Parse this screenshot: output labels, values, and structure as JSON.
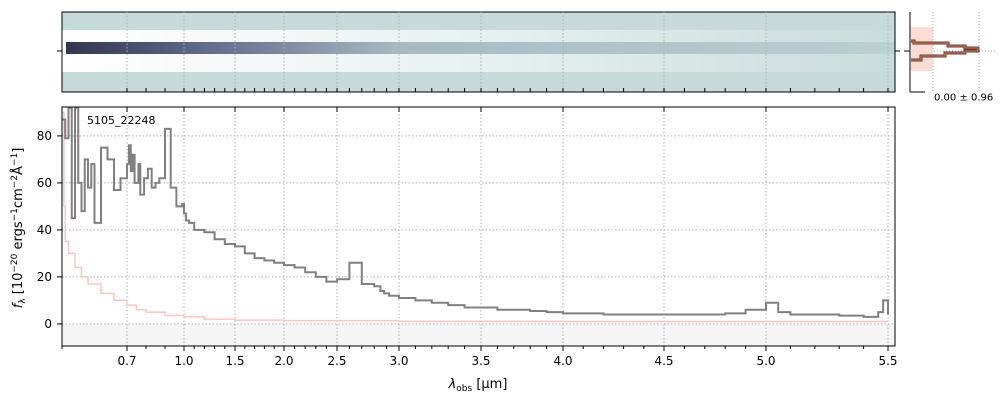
{
  "chart_data": {
    "type": "line",
    "title": "",
    "annotation": "5105_22248",
    "xlabel": "λ_obs [μm]",
    "xlabel_main": "λ",
    "xlabel_sub": "obs",
    "xlabel_unit": " [μm]",
    "ylabel": "f_λ [10^-20 ergs^-1 cm^-2 Å^-1]",
    "xlim": [
      0.6,
      5.52
    ],
    "ylim": [
      -9.4,
      92.3
    ],
    "xticks": [
      0.7,
      1.0,
      1.5,
      2.0,
      2.5,
      3.0,
      3.5,
      4.0,
      4.5,
      5.0,
      5.5
    ],
    "xtick_labels": [
      "0.7",
      "1.0",
      "1.5",
      "2.0",
      "2.5",
      "3.0",
      "3.5",
      "4.0",
      "4.5",
      "5.0",
      "5.5"
    ],
    "yticks": [
      0,
      20,
      40,
      60,
      80
    ],
    "ytick_labels": [
      "0",
      "20",
      "40",
      "60",
      "80"
    ],
    "grid": true,
    "series": [
      {
        "name": "flux",
        "color": "#808080",
        "x": [
          0.6,
          0.605,
          0.61,
          0.615,
          0.62,
          0.625,
          0.63,
          0.635,
          0.64,
          0.645,
          0.65,
          0.66,
          0.67,
          0.68,
          0.69,
          0.7,
          0.71,
          0.72,
          0.73,
          0.74,
          0.76,
          0.77,
          0.79,
          0.81,
          0.83,
          0.85,
          0.87,
          0.9,
          0.93,
          0.96,
          0.99,
          1.0,
          1.02,
          1.05,
          1.1,
          1.2,
          1.3,
          1.4,
          1.5,
          1.6,
          1.7,
          1.8,
          1.9,
          2.0,
          2.1,
          2.2,
          2.3,
          2.4,
          2.5,
          2.6,
          2.7,
          2.8,
          2.85,
          2.88,
          2.92,
          3.0,
          3.1,
          3.2,
          3.3,
          3.4,
          3.5,
          3.6,
          3.7,
          3.8,
          3.9,
          4.0,
          4.1,
          4.2,
          4.3,
          4.4,
          4.5,
          4.6,
          4.7,
          4.8,
          4.9,
          5.0,
          5.05,
          5.1,
          5.2,
          5.3,
          5.4,
          5.46,
          5.48,
          5.5
        ],
        "y": [
          87,
          79,
          92,
          45,
          92,
          60,
          48,
          70,
          58,
          68,
          43,
          75,
          70,
          57,
          62,
          68,
          76,
          65,
          72,
          60,
          68,
          55,
          62,
          66,
          58,
          60,
          62,
          83,
          58,
          50,
          51,
          47,
          44,
          43,
          40,
          39,
          36,
          34,
          33,
          30,
          28,
          27,
          26,
          25,
          24,
          22,
          20,
          18,
          19,
          26,
          17,
          16,
          14,
          13,
          12,
          11,
          10,
          9,
          8,
          7,
          7,
          6,
          6,
          5.5,
          5,
          4.5,
          4.5,
          4,
          4,
          4,
          4,
          4,
          4,
          4.5,
          6,
          9,
          5,
          4,
          4,
          3.5,
          3,
          5,
          10,
          4
        ]
      },
      {
        "name": "error",
        "color": "#ffc4c4",
        "x": [
          0.6,
          0.603,
          0.605,
          0.61,
          0.62,
          0.63,
          0.64,
          0.66,
          0.68,
          0.7,
          0.75,
          0.8,
          0.9,
          1.0,
          1.2,
          1.5,
          2.0,
          3.0,
          4.0,
          5.0,
          5.5
        ],
        "y": [
          90,
          50,
          35,
          30,
          24,
          20,
          17,
          13,
          10,
          8,
          6,
          5,
          3.6,
          3,
          2,
          1.6,
          1.4,
          1.1,
          1,
          1,
          1
        ]
      }
    ]
  },
  "profile_panel": {
    "label": "0.00 ± 0.96"
  }
}
